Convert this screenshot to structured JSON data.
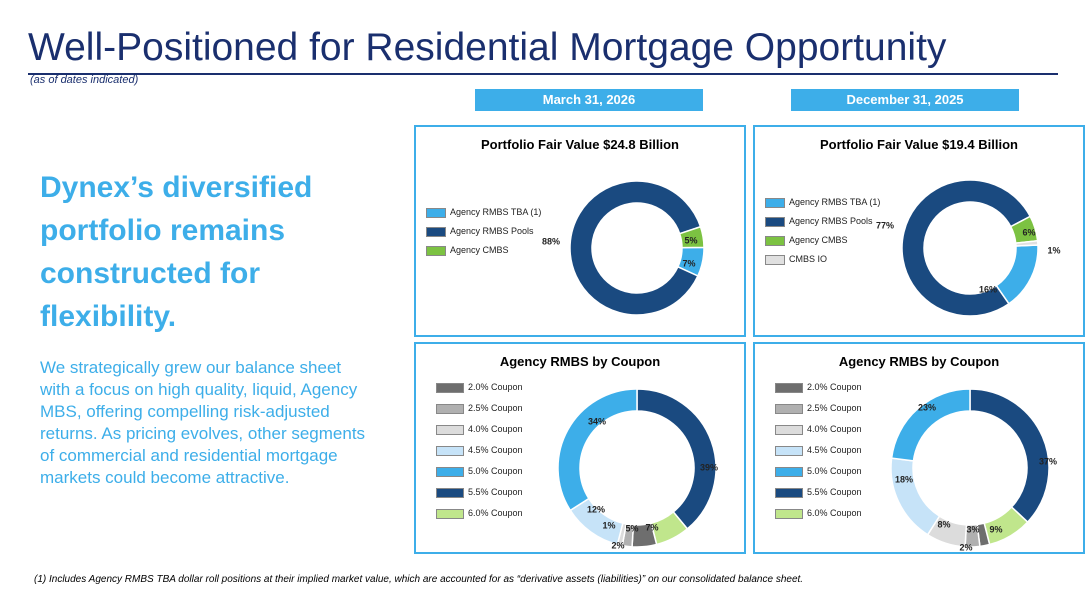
{
  "header": {
    "title": "Well-Positioned for Residential Mortgage Opportunity",
    "subtitle": "(as of dates indicated)"
  },
  "dates": {
    "left": "March 31, 2026",
    "right": "December 31, 2025"
  },
  "headline": "Dynex’s diversified portfolio remains constructed for flexibility.",
  "body": "We strategically grew our balance sheet with a focus on high quality, liquid, Agency MBS, offering compelling risk-adjusted returns. As pricing evolves, other segments of commercial and residential mortgage markets could become attractive.",
  "footnote": "(1) Includes Agency RMBS TBA dollar roll positions at their implied market value, which are accounted for as “derivative assets (liabilities)” on our consolidated balance sheet.",
  "colors": {
    "accent": "#3daee9",
    "title": "#1a2f6e",
    "agency_tba": "#3daee9",
    "agency_pools": "#1a4a80",
    "agency_cmbs": "#7cc242",
    "cmbs_io": "#e0e0e0",
    "c2_0": "#6e6e6e",
    "c2_5": "#b0b0b0",
    "c4_0": "#dcdcdc",
    "c4_5": "#c6e3f8",
    "c5_0": "#3daee9",
    "c5_5": "#1a4a80",
    "c6_0": "#c0e68c"
  },
  "chart_data": [
    {
      "id": "fv_mar",
      "type": "pie",
      "title": "Portfolio Fair Value $24.8 Billion",
      "date": "March 31, 2026",
      "legend": [
        "Agency RMBS TBA (1)",
        "Agency RMBS Pools",
        "Agency CMBS"
      ],
      "series": [
        {
          "name": "Agency RMBS TBA (1)",
          "value": 7,
          "label": "7%",
          "color": "#3daee9"
        },
        {
          "name": "Agency RMBS Pools",
          "value": 88,
          "label": "88%",
          "color": "#1a4a80"
        },
        {
          "name": "Agency CMBS",
          "value": 5,
          "label": "5%",
          "color": "#7cc242"
        }
      ]
    },
    {
      "id": "fv_dec",
      "type": "pie",
      "title": "Portfolio Fair Value $19.4 Billion",
      "date": "December 31, 2025",
      "legend": [
        "Agency RMBS TBA (1)",
        "Agency RMBS Pools",
        "Agency CMBS",
        "CMBS IO"
      ],
      "series": [
        {
          "name": "Agency RMBS TBA (1)",
          "value": 16,
          "label": "16%",
          "color": "#3daee9"
        },
        {
          "name": "Agency RMBS Pools",
          "value": 77,
          "label": "77%",
          "color": "#1a4a80"
        },
        {
          "name": "Agency CMBS",
          "value": 6,
          "label": "6%",
          "color": "#7cc242"
        },
        {
          "name": "CMBS IO",
          "value": 1,
          "label": "1%",
          "color": "#e0e0e0"
        }
      ]
    },
    {
      "id": "cp_mar",
      "type": "pie",
      "title": "Agency RMBS by Coupon",
      "date": "March 31, 2026",
      "legend": [
        "2.0% Coupon",
        "2.5% Coupon",
        "4.0% Coupon",
        "4.5% Coupon",
        "5.0% Coupon",
        "5.5% Coupon",
        "6.0% Coupon"
      ],
      "series": [
        {
          "name": "5.5% Coupon",
          "value": 39,
          "label": "39%",
          "color": "#1a4a80"
        },
        {
          "name": "6.0% Coupon",
          "value": 7,
          "label": "7%",
          "color": "#c0e68c"
        },
        {
          "name": "2.0% Coupon",
          "value": 5,
          "label": "5%",
          "color": "#6e6e6e"
        },
        {
          "name": "2.5% Coupon",
          "value": 2,
          "label": "2%",
          "color": "#b0b0b0"
        },
        {
          "name": "4.0% Coupon",
          "value": 1,
          "label": "1%",
          "color": "#dcdcdc"
        },
        {
          "name": "4.5% Coupon",
          "value": 12,
          "label": "12%",
          "color": "#c6e3f8"
        },
        {
          "name": "5.0% Coupon",
          "value": 34,
          "label": "34%",
          "color": "#3daee9"
        }
      ]
    },
    {
      "id": "cp_dec",
      "type": "pie",
      "title": "Agency RMBS by Coupon",
      "date": "December 31, 2025",
      "legend": [
        "2.0% Coupon",
        "2.5% Coupon",
        "4.0% Coupon",
        "4.5% Coupon",
        "5.0% Coupon",
        "5.5% Coupon",
        "6.0% Coupon"
      ],
      "series": [
        {
          "name": "5.5% Coupon",
          "value": 37,
          "label": "37%",
          "color": "#1a4a80"
        },
        {
          "name": "6.0% Coupon",
          "value": 9,
          "label": "9%",
          "color": "#c0e68c"
        },
        {
          "name": "2.0% Coupon",
          "value": 2,
          "label": "2%",
          "color": "#6e6e6e"
        },
        {
          "name": "2.5% Coupon",
          "value": 3,
          "label": "3%",
          "color": "#b0b0b0"
        },
        {
          "name": "4.0% Coupon",
          "value": 8,
          "label": "8%",
          "color": "#dcdcdc"
        },
        {
          "name": "4.5% Coupon",
          "value": 18,
          "label": "18%",
          "color": "#c6e3f8"
        },
        {
          "name": "5.0% Coupon",
          "value": 23,
          "label": "23%",
          "color": "#3daee9"
        }
      ]
    }
  ]
}
